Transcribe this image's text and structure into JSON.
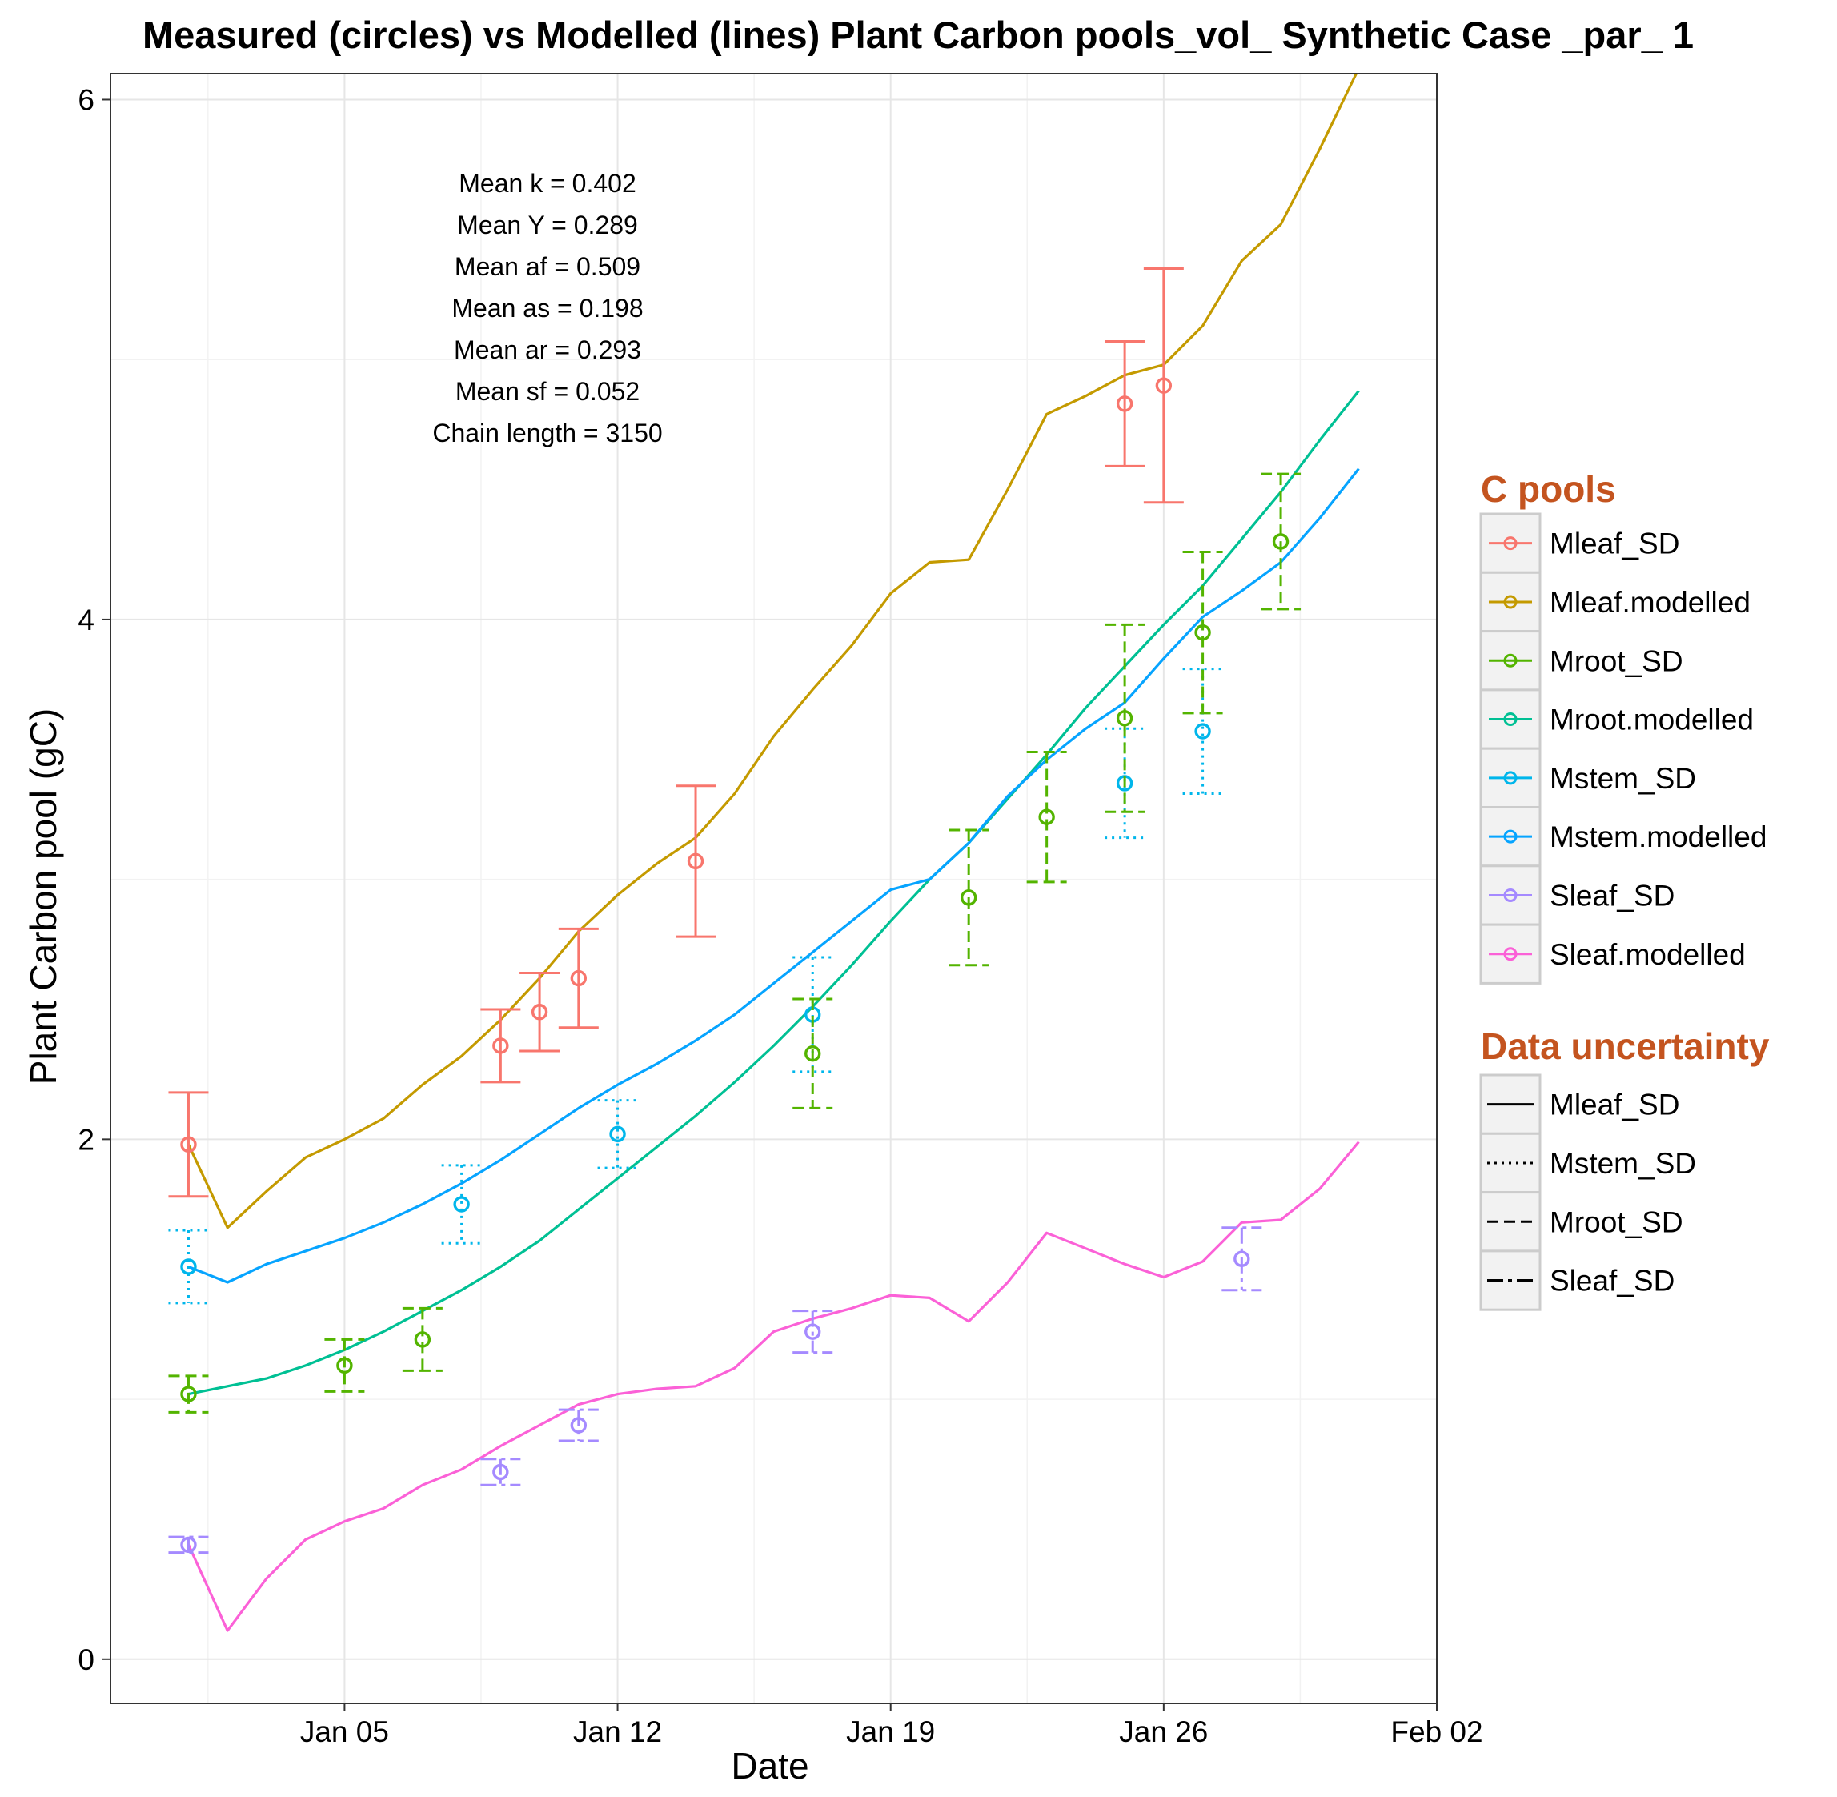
{
  "chart_data": {
    "type": "line",
    "title": "Measured (circles) vs Modelled (lines) Plant Carbon pools_vol_ Synthetic Case _par_ 1",
    "xlabel": "Date",
    "ylabel": "Plant Carbon pool (gC)",
    "xlim": [
      "2014-12-30",
      "2015-02-02"
    ],
    "ylim": [
      -0.17,
      6.1
    ],
    "x_ticks": [
      "2015-01-05",
      "2015-01-12",
      "2015-01-19",
      "2015-01-26",
      "2015-02-02"
    ],
    "x_tick_labels": [
      "Jan 05",
      "Jan 12",
      "Jan 19",
      "Jan 26",
      "Feb 02"
    ],
    "y_ticks": [
      0,
      2,
      4,
      6
    ],
    "y_tick_labels": [
      "0",
      "2",
      "4",
      "6"
    ],
    "grid": true,
    "legend_placement": "right",
    "annotations": [
      "Mean k =  0.402",
      "Mean Y =  0.289",
      "Mean af =  0.509",
      "Mean as =  0.198",
      "Mean ar =  0.293",
      "Mean sf =  0.052",
      "Chain length =  3150"
    ],
    "colors": {
      "Mleaf_SD": "#f8766d",
      "Mleaf.modelled": "#c49a00",
      "Mroot_SD": "#53b400",
      "Mroot.modelled": "#00c094",
      "Mstem_SD": "#00b6eb",
      "Mstem.modelled": "#06a4ff",
      "Sleaf_SD": "#a58aff",
      "Sleaf.modelled": "#fb61d7"
    },
    "measured": [
      {
        "name": "Mleaf_SD",
        "dash": "solid",
        "points": [
          {
            "x": "2015-01-01",
            "y": 1.98,
            "sd": 0.2
          },
          {
            "x": "2015-01-09",
            "y": 2.36,
            "sd": 0.14
          },
          {
            "x": "2015-01-10",
            "y": 2.49,
            "sd": 0.15
          },
          {
            "x": "2015-01-11",
            "y": 2.62,
            "sd": 0.19
          },
          {
            "x": "2015-01-14",
            "y": 3.07,
            "sd": 0.29
          },
          {
            "x": "2015-01-25",
            "y": 4.83,
            "sd": 0.24
          },
          {
            "x": "2015-01-26",
            "y": 4.9,
            "sd": 0.45
          }
        ]
      },
      {
        "name": "Mstem_SD",
        "dash": "dotted",
        "points": [
          {
            "x": "2015-01-01",
            "y": 1.51,
            "sd": 0.14
          },
          {
            "x": "2015-01-08",
            "y": 1.75,
            "sd": 0.15
          },
          {
            "x": "2015-01-12",
            "y": 2.02,
            "sd": 0.13
          },
          {
            "x": "2015-01-17",
            "y": 2.48,
            "sd": 0.22
          },
          {
            "x": "2015-01-25",
            "y": 3.37,
            "sd": 0.21
          },
          {
            "x": "2015-01-27",
            "y": 3.57,
            "sd": 0.24
          }
        ]
      },
      {
        "name": "Mroot_SD",
        "dash": "longdash",
        "points": [
          {
            "x": "2015-01-01",
            "y": 1.02,
            "sd": 0.07
          },
          {
            "x": "2015-01-05",
            "y": 1.13,
            "sd": 0.1
          },
          {
            "x": "2015-01-07",
            "y": 1.23,
            "sd": 0.12
          },
          {
            "x": "2015-01-17",
            "y": 2.33,
            "sd": 0.21
          },
          {
            "x": "2015-01-21",
            "y": 2.93,
            "sd": 0.26
          },
          {
            "x": "2015-01-23",
            "y": 3.24,
            "sd": 0.25
          },
          {
            "x": "2015-01-25",
            "y": 3.62,
            "sd": 0.36
          },
          {
            "x": "2015-01-27",
            "y": 3.95,
            "sd": 0.31
          },
          {
            "x": "2015-01-29",
            "y": 4.3,
            "sd": 0.26
          }
        ]
      },
      {
        "name": "Sleaf_SD",
        "dash": "twodash",
        "points": [
          {
            "x": "2015-01-01",
            "y": 0.44,
            "sd": 0.03
          },
          {
            "x": "2015-01-09",
            "y": 0.72,
            "sd": 0.05
          },
          {
            "x": "2015-01-11",
            "y": 0.9,
            "sd": 0.06
          },
          {
            "x": "2015-01-17",
            "y": 1.26,
            "sd": 0.08
          },
          {
            "x": "2015-01-28",
            "y": 1.54,
            "sd": 0.12
          }
        ]
      }
    ],
    "modelled": {
      "x": [
        "2015-01-01",
        "2015-01-02",
        "2015-01-03",
        "2015-01-04",
        "2015-01-05",
        "2015-01-06",
        "2015-01-07",
        "2015-01-08",
        "2015-01-09",
        "2015-01-10",
        "2015-01-11",
        "2015-01-12",
        "2015-01-13",
        "2015-01-14",
        "2015-01-15",
        "2015-01-16",
        "2015-01-17",
        "2015-01-18",
        "2015-01-19",
        "2015-01-20",
        "2015-01-21",
        "2015-01-22",
        "2015-01-23",
        "2015-01-24",
        "2015-01-25",
        "2015-01-26",
        "2015-01-27",
        "2015-01-28",
        "2015-01-29",
        "2015-01-30",
        "2015-01-31"
      ],
      "series": [
        {
          "name": "Mleaf.modelled",
          "values": [
            1.98,
            1.66,
            1.8,
            1.93,
            2.0,
            2.08,
            2.21,
            2.32,
            2.46,
            2.62,
            2.8,
            2.94,
            3.06,
            3.16,
            3.33,
            3.55,
            3.73,
            3.9,
            4.1,
            4.22,
            4.23,
            4.5,
            4.79,
            4.86,
            4.94,
            4.98,
            5.13,
            5.38,
            5.52,
            5.81,
            6.12
          ]
        },
        {
          "name": "Mroot.modelled",
          "values": [
            1.02,
            1.05,
            1.08,
            1.13,
            1.19,
            1.26,
            1.34,
            1.42,
            1.51,
            1.61,
            1.73,
            1.85,
            1.97,
            2.09,
            2.22,
            2.36,
            2.51,
            2.67,
            2.84,
            3.0,
            3.14,
            3.31,
            3.48,
            3.66,
            3.82,
            3.98,
            4.13,
            4.31,
            4.49,
            4.69,
            4.88
          ]
        },
        {
          "name": "Mstem.modelled",
          "values": [
            1.51,
            1.45,
            1.52,
            1.57,
            1.62,
            1.68,
            1.75,
            1.83,
            1.92,
            2.02,
            2.12,
            2.21,
            2.29,
            2.38,
            2.48,
            2.6,
            2.72,
            2.84,
            2.96,
            3.0,
            3.14,
            3.32,
            3.46,
            3.58,
            3.68,
            3.85,
            4.01,
            4.11,
            4.22,
            4.39,
            4.58
          ]
        },
        {
          "name": "Sleaf.modelled",
          "values": [
            0.44,
            0.11,
            0.31,
            0.46,
            0.53,
            0.58,
            0.67,
            0.73,
            0.82,
            0.9,
            0.98,
            1.02,
            1.04,
            1.05,
            1.12,
            1.26,
            1.31,
            1.35,
            1.4,
            1.39,
            1.3,
            1.45,
            1.64,
            1.58,
            1.52,
            1.47,
            1.53,
            1.68,
            1.69,
            1.81,
            1.99
          ]
        }
      ]
    }
  },
  "legend": {
    "pools_title": "C pools",
    "pools_items": [
      {
        "label": "Mleaf_SD",
        "color": "#f8766d"
      },
      {
        "label": "Mleaf.modelled",
        "color": "#c49a00"
      },
      {
        "label": "Mroot_SD",
        "color": "#53b400"
      },
      {
        "label": "Mroot.modelled",
        "color": "#00c094"
      },
      {
        "label": "Mstem_SD",
        "color": "#00b6eb"
      },
      {
        "label": "Mstem.modelled",
        "color": "#06a4ff"
      },
      {
        "label": "Sleaf_SD",
        "color": "#a58aff"
      },
      {
        "label": "Sleaf.modelled",
        "color": "#fb61d7"
      }
    ],
    "uncertainty_title": "Data uncertainty",
    "uncertainty_items": [
      {
        "label": "Mleaf_SD",
        "dash": "solid"
      },
      {
        "label": "Mstem_SD",
        "dash": "dotted"
      },
      {
        "label": "Mroot_SD",
        "dash": "longdash"
      },
      {
        "label": "Sleaf_SD",
        "dash": "twodash"
      }
    ]
  }
}
